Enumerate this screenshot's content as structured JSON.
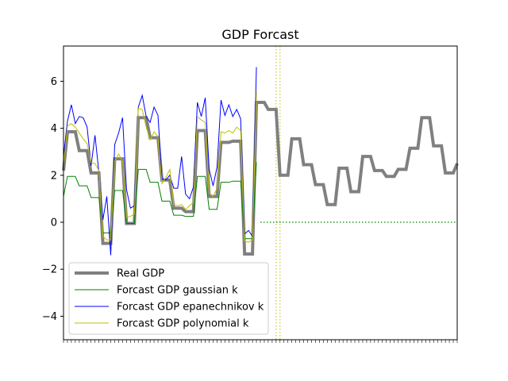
{
  "chart_data": {
    "type": "line",
    "title": "GDP Forcast",
    "xlabel": "",
    "ylabel": "",
    "xlim": [
      0,
      100
    ],
    "ylim": [
      -5,
      7.5
    ],
    "yticks": [
      -4,
      -2,
      0,
      2,
      4,
      6
    ],
    "ytick_labels": [
      "−4",
      "−2",
      "0",
      "2",
      "4",
      "6"
    ],
    "grid": false,
    "legend": "lower-left",
    "series": [
      {
        "name": "Real GDP",
        "color": "#808080",
        "values": [
          [
            0,
            2.2
          ],
          [
            1,
            3.85
          ],
          [
            2,
            3.85
          ],
          [
            3,
            3.85
          ],
          [
            4,
            3.05
          ],
          [
            5,
            3.05
          ],
          [
            6,
            3.05
          ],
          [
            7,
            2.1
          ],
          [
            8,
            2.1
          ],
          [
            9,
            2.1
          ],
          [
            10,
            -0.9
          ],
          [
            11,
            -0.9
          ],
          [
            12,
            -0.9
          ],
          [
            13,
            2.7
          ],
          [
            14,
            2.7
          ],
          [
            15,
            2.7
          ],
          [
            16,
            -0.05
          ],
          [
            17,
            -0.05
          ],
          [
            18,
            -0.05
          ],
          [
            19,
            4.45
          ],
          [
            20,
            4.45
          ],
          [
            21,
            4.45
          ],
          [
            22,
            3.6
          ],
          [
            23,
            3.6
          ],
          [
            24,
            3.6
          ],
          [
            25,
            1.8
          ],
          [
            26,
            1.8
          ],
          [
            27,
            1.8
          ],
          [
            28,
            0.6
          ],
          [
            29,
            0.6
          ],
          [
            30,
            0.6
          ],
          [
            31,
            0.45
          ],
          [
            32,
            0.45
          ],
          [
            33,
            0.45
          ],
          [
            34,
            3.9
          ],
          [
            35,
            3.9
          ],
          [
            36,
            3.9
          ],
          [
            37,
            1.1
          ],
          [
            38,
            1.1
          ],
          [
            39,
            1.1
          ],
          [
            40,
            3.4
          ],
          [
            41,
            3.4
          ],
          [
            42,
            3.4
          ],
          [
            43,
            3.45
          ],
          [
            44,
            3.45
          ],
          [
            45,
            3.45
          ],
          [
            46,
            -1.35
          ],
          [
            47,
            -1.35
          ],
          [
            48,
            -1.35
          ],
          [
            49,
            5.1
          ],
          [
            50,
            5.1
          ],
          [
            51,
            5.1
          ],
          [
            52,
            4.8
          ],
          [
            53,
            4.8
          ],
          [
            54,
            4.8
          ],
          [
            55,
            2.0
          ],
          [
            56,
            2.0
          ],
          [
            57,
            2.0
          ],
          [
            58,
            3.55
          ],
          [
            59,
            3.55
          ],
          [
            60,
            3.55
          ],
          [
            61,
            2.45
          ],
          [
            62,
            2.45
          ],
          [
            63,
            2.45
          ],
          [
            64,
            1.6
          ],
          [
            65,
            1.6
          ],
          [
            66,
            1.6
          ],
          [
            67,
            0.75
          ],
          [
            68,
            0.75
          ],
          [
            69,
            0.75
          ],
          [
            70,
            2.3
          ],
          [
            71,
            2.3
          ],
          [
            72,
            2.3
          ],
          [
            73,
            1.3
          ],
          [
            74,
            1.3
          ],
          [
            75,
            1.3
          ],
          [
            76,
            2.8
          ],
          [
            77,
            2.8
          ],
          [
            78,
            2.8
          ],
          [
            79,
            2.2
          ],
          [
            80,
            2.2
          ],
          [
            81,
            2.2
          ],
          [
            82,
            1.95
          ],
          [
            83,
            1.95
          ],
          [
            84,
            1.95
          ],
          [
            85,
            2.25
          ],
          [
            86,
            2.25
          ],
          [
            87,
            2.25
          ],
          [
            88,
            3.15
          ],
          [
            89,
            3.15
          ],
          [
            90,
            3.15
          ],
          [
            91,
            4.45
          ],
          [
            92,
            4.45
          ],
          [
            93,
            4.45
          ],
          [
            94,
            3.25
          ],
          [
            95,
            3.25
          ],
          [
            96,
            3.25
          ],
          [
            97,
            2.1
          ],
          [
            98,
            2.1
          ],
          [
            99,
            2.1
          ],
          [
            100,
            2.5
          ]
        ]
      },
      {
        "name": "Forcast GDP gaussian k",
        "color": "#008000",
        "values": [
          [
            0,
            1.1
          ],
          [
            1,
            1.95
          ],
          [
            2,
            1.95
          ],
          [
            3,
            1.95
          ],
          [
            4,
            1.55
          ],
          [
            5,
            1.55
          ],
          [
            6,
            1.55
          ],
          [
            7,
            1.05
          ],
          [
            8,
            1.05
          ],
          [
            9,
            1.05
          ],
          [
            10,
            -0.45
          ],
          [
            11,
            -0.45
          ],
          [
            12,
            -0.45
          ],
          [
            13,
            1.35
          ],
          [
            14,
            1.35
          ],
          [
            15,
            1.35
          ],
          [
            16,
            -0.05
          ],
          [
            17,
            -0.05
          ],
          [
            18,
            -0.05
          ],
          [
            19,
            2.25
          ],
          [
            20,
            2.25
          ],
          [
            21,
            2.25
          ],
          [
            22,
            1.7
          ],
          [
            23,
            1.7
          ],
          [
            24,
            1.7
          ],
          [
            25,
            0.9
          ],
          [
            26,
            0.9
          ],
          [
            27,
            0.9
          ],
          [
            28,
            0.3
          ],
          [
            29,
            0.3
          ],
          [
            30,
            0.3
          ],
          [
            31,
            0.25
          ],
          [
            32,
            0.25
          ],
          [
            33,
            0.25
          ],
          [
            34,
            1.95
          ],
          [
            35,
            1.95
          ],
          [
            36,
            1.95
          ],
          [
            37,
            0.55
          ],
          [
            38,
            0.55
          ],
          [
            39,
            0.55
          ],
          [
            40,
            1.7
          ],
          [
            41,
            1.7
          ],
          [
            42,
            1.7
          ],
          [
            43,
            1.75
          ],
          [
            44,
            1.75
          ],
          [
            45,
            1.75
          ],
          [
            46,
            -0.7
          ],
          [
            47,
            -0.7
          ],
          [
            48,
            -0.7
          ],
          [
            49,
            2.55
          ]
        ]
      },
      {
        "name": "Forcast GDP epanechnikov k",
        "color": "#0000ff",
        "values": [
          [
            0,
            2.8
          ],
          [
            1,
            4.3
          ],
          [
            2,
            5.0
          ],
          [
            3,
            4.2
          ],
          [
            4,
            4.5
          ],
          [
            5,
            4.45
          ],
          [
            6,
            4.05
          ],
          [
            7,
            2.4
          ],
          [
            8,
            3.7
          ],
          [
            9,
            2.1
          ],
          [
            10,
            0.1
          ],
          [
            11,
            1.1
          ],
          [
            12,
            -1.4
          ],
          [
            13,
            3.3
          ],
          [
            14,
            3.8
          ],
          [
            15,
            4.45
          ],
          [
            16,
            1.4
          ],
          [
            17,
            0.6
          ],
          [
            18,
            0.7
          ],
          [
            19,
            4.9
          ],
          [
            20,
            5.4
          ],
          [
            21,
            4.5
          ],
          [
            22,
            4.25
          ],
          [
            23,
            4.9
          ],
          [
            24,
            4.55
          ],
          [
            25,
            1.85
          ],
          [
            26,
            1.8
          ],
          [
            27,
            2.0
          ],
          [
            28,
            1.45
          ],
          [
            29,
            1.45
          ],
          [
            30,
            2.8
          ],
          [
            31,
            1.2
          ],
          [
            32,
            1.0
          ],
          [
            33,
            1.5
          ],
          [
            34,
            5.1
          ],
          [
            35,
            4.5
          ],
          [
            36,
            5.3
          ],
          [
            37,
            2.25
          ],
          [
            38,
            1.55
          ],
          [
            39,
            2.35
          ],
          [
            40,
            5.2
          ],
          [
            41,
            4.55
          ],
          [
            42,
            5.0
          ],
          [
            43,
            4.5
          ],
          [
            44,
            4.8
          ],
          [
            45,
            4.4
          ],
          [
            46,
            -0.5
          ],
          [
            47,
            -0.35
          ],
          [
            48,
            -0.6
          ],
          [
            49,
            6.6
          ]
        ]
      },
      {
        "name": "Forcast GDP polynomial k",
        "color": "#bfbf00",
        "values": [
          [
            0,
            2.4
          ],
          [
            1,
            4.1
          ],
          [
            2,
            4.2
          ],
          [
            3,
            4.05
          ],
          [
            4,
            3.8
          ],
          [
            5,
            3.55
          ],
          [
            6,
            3.35
          ],
          [
            7,
            2.55
          ],
          [
            8,
            2.5
          ],
          [
            9,
            2.2
          ],
          [
            10,
            -0.6
          ],
          [
            11,
            -0.75
          ],
          [
            12,
            -0.75
          ],
          [
            13,
            2.6
          ],
          [
            14,
            2.9
          ],
          [
            15,
            2.6
          ],
          [
            16,
            0.2
          ],
          [
            17,
            0.25
          ],
          [
            18,
            0.35
          ],
          [
            19,
            4.85
          ],
          [
            20,
            4.8
          ],
          [
            21,
            4.05
          ],
          [
            22,
            3.5
          ],
          [
            23,
            3.85
          ],
          [
            24,
            3.65
          ],
          [
            25,
            1.65
          ],
          [
            26,
            1.9
          ],
          [
            27,
            2.25
          ],
          [
            28,
            0.75
          ],
          [
            29,
            0.7
          ],
          [
            30,
            0.75
          ],
          [
            31,
            0.55
          ],
          [
            32,
            0.7
          ],
          [
            33,
            0.85
          ],
          [
            34,
            4.5
          ],
          [
            35,
            4.35
          ],
          [
            36,
            4.25
          ],
          [
            37,
            1.25
          ],
          [
            38,
            1.1
          ],
          [
            39,
            1.45
          ],
          [
            40,
            3.85
          ],
          [
            41,
            3.8
          ],
          [
            42,
            3.9
          ],
          [
            43,
            3.8
          ],
          [
            44,
            4.05
          ],
          [
            45,
            3.9
          ],
          [
            46,
            -0.8
          ],
          [
            47,
            -0.85
          ],
          [
            48,
            -0.75
          ],
          [
            49,
            5.55
          ]
        ]
      }
    ],
    "reference_lines": [
      {
        "orientation": "vertical",
        "x": 54,
        "color": "#bfbf00",
        "style": "dotted"
      },
      {
        "orientation": "vertical",
        "x": 55,
        "color": "#bfbf00",
        "style": "dotted"
      },
      {
        "orientation": "horizontal",
        "y": 0,
        "x_from": 50,
        "x_to": 100,
        "color": "#008000",
        "style": "dotted"
      }
    ]
  }
}
